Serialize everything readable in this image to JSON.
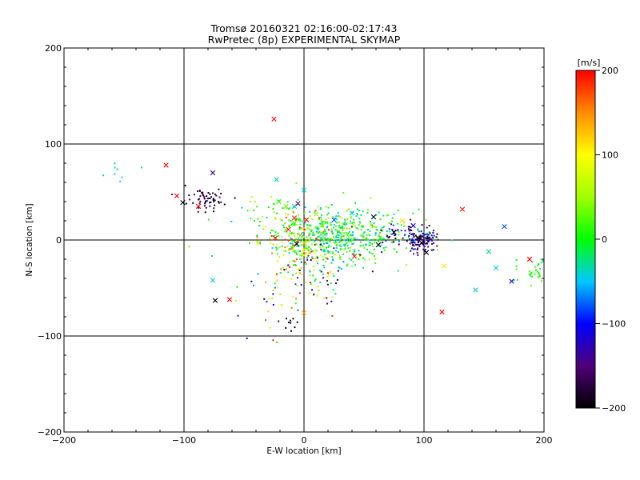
{
  "chart_data": {
    "type": "scatter",
    "title": "Tromsø 20160321 02:16:00-02:17:43",
    "subtitle": "RwPretec (8p) EXPERIMENTAL SKYMAP",
    "xlabel": "E-W location [km]",
    "ylabel": "N-S location [km]",
    "xlim": [
      -200,
      200
    ],
    "ylim": [
      -200,
      200
    ],
    "x_ticks": [
      -200,
      -100,
      0,
      100,
      200
    ],
    "y_ticks": [
      -200,
      -100,
      0,
      100,
      200
    ],
    "x_tick_labels": [
      "−200",
      "−100",
      "0",
      "100",
      "200"
    ],
    "y_tick_labels": [
      "−200",
      "−100",
      "0",
      "100",
      "200"
    ],
    "grid": true,
    "colorbar": {
      "label": "[m/s]",
      "range": [
        -200,
        200
      ],
      "ticks": [
        200,
        100,
        0,
        -100,
        -200
      ],
      "tick_labels": [
        "200",
        "100",
        "0",
        "−100",
        "−200"
      ],
      "colormap": "rainbow"
    },
    "series": [
      {
        "marker": "x",
        "points": [
          [
            -25,
            126,
            200
          ],
          [
            -115,
            78,
            200
          ],
          [
            -106,
            46,
            200
          ],
          [
            -101,
            39,
            -200
          ],
          [
            -76,
            70,
            -150
          ],
          [
            -88,
            35,
            200
          ],
          [
            -23,
            63,
            -40
          ],
          [
            -21,
            40,
            10
          ],
          [
            -15,
            35,
            40
          ],
          [
            -8,
            35,
            -40
          ],
          [
            -8,
            23,
            190
          ],
          [
            -13,
            11,
            190
          ],
          [
            -5,
            38,
            -150
          ],
          [
            -8,
            18,
            30
          ],
          [
            0,
            52,
            -40
          ],
          [
            2,
            21,
            200
          ],
          [
            25,
            21,
            -80
          ],
          [
            58,
            24,
            -200
          ],
          [
            75,
            8,
            -200
          ],
          [
            82,
            20,
            110
          ],
          [
            91,
            15,
            -110
          ],
          [
            95,
            2,
            -200
          ],
          [
            98,
            -3,
            -200
          ],
          [
            102,
            -13,
            -200
          ],
          [
            132,
            32,
            190
          ],
          [
            167,
            14,
            -80
          ],
          [
            -38,
            -3,
            80
          ],
          [
            -24,
            2,
            190
          ],
          [
            -6,
            -4,
            -200
          ],
          [
            0,
            -3,
            110
          ],
          [
            0,
            -76,
            140
          ],
          [
            -74,
            -63,
            -200
          ],
          [
            -62,
            -62,
            200
          ],
          [
            -76,
            -42,
            -40
          ],
          [
            115,
            -75,
            200
          ],
          [
            117,
            -27,
            110
          ],
          [
            154,
            -12,
            -30
          ],
          [
            143,
            -52,
            -40
          ],
          [
            160,
            -29,
            -40
          ],
          [
            173,
            -43,
            -110
          ],
          [
            188,
            -20,
            200
          ],
          [
            199,
            -22,
            -20
          ],
          [
            42,
            -17,
            190
          ],
          [
            38,
            0,
            -20
          ],
          [
            15,
            0,
            -20
          ],
          [
            10,
            27,
            40
          ],
          [
            40,
            28,
            -40
          ],
          [
            62,
            -5,
            -200
          ]
        ]
      },
      {
        "marker": "dot",
        "clusters": [
          {
            "cx": 25,
            "cy": 5,
            "sx": 30,
            "sy": 14,
            "n": 560,
            "vmin": -60,
            "vmax": 60
          },
          {
            "cx": -5,
            "cy": -8,
            "sx": 12,
            "sy": 18,
            "n": 150,
            "vmin": -20,
            "vmax": 200
          },
          {
            "cx": 98,
            "cy": 0,
            "sx": 6,
            "sy": 6,
            "n": 120,
            "vmin": -200,
            "vmax": -110
          },
          {
            "cx": -80,
            "cy": 42,
            "sx": 9,
            "sy": 6,
            "n": 60,
            "vmin": -200,
            "vmax": -150
          },
          {
            "cx": 80,
            "cy": 5,
            "sx": 12,
            "sy": 6,
            "n": 40,
            "vmin": -200,
            "vmax": -60
          },
          {
            "cx": 20,
            "cy": -30,
            "sx": 18,
            "sy": 22,
            "n": 70,
            "vmin": -200,
            "vmax": 200
          },
          {
            "cx": -25,
            "cy": -50,
            "sx": 12,
            "sy": 22,
            "n": 35,
            "vmin": -200,
            "vmax": 200
          },
          {
            "cx": -155,
            "cy": 70,
            "sx": 9,
            "sy": 6,
            "n": 8,
            "vmin": -60,
            "vmax": -20
          },
          {
            "cx": 192,
            "cy": -32,
            "sx": 7,
            "sy": 7,
            "n": 30,
            "vmin": -10,
            "vmax": 30
          },
          {
            "cx": -25,
            "cy": 32,
            "sx": 14,
            "sy": 8,
            "n": 30,
            "vmin": -10,
            "vmax": 60
          },
          {
            "cx": -15,
            "cy": -88,
            "sx": 5,
            "sy": 4,
            "n": 10,
            "vmin": -200,
            "vmax": -170
          }
        ]
      }
    ]
  }
}
